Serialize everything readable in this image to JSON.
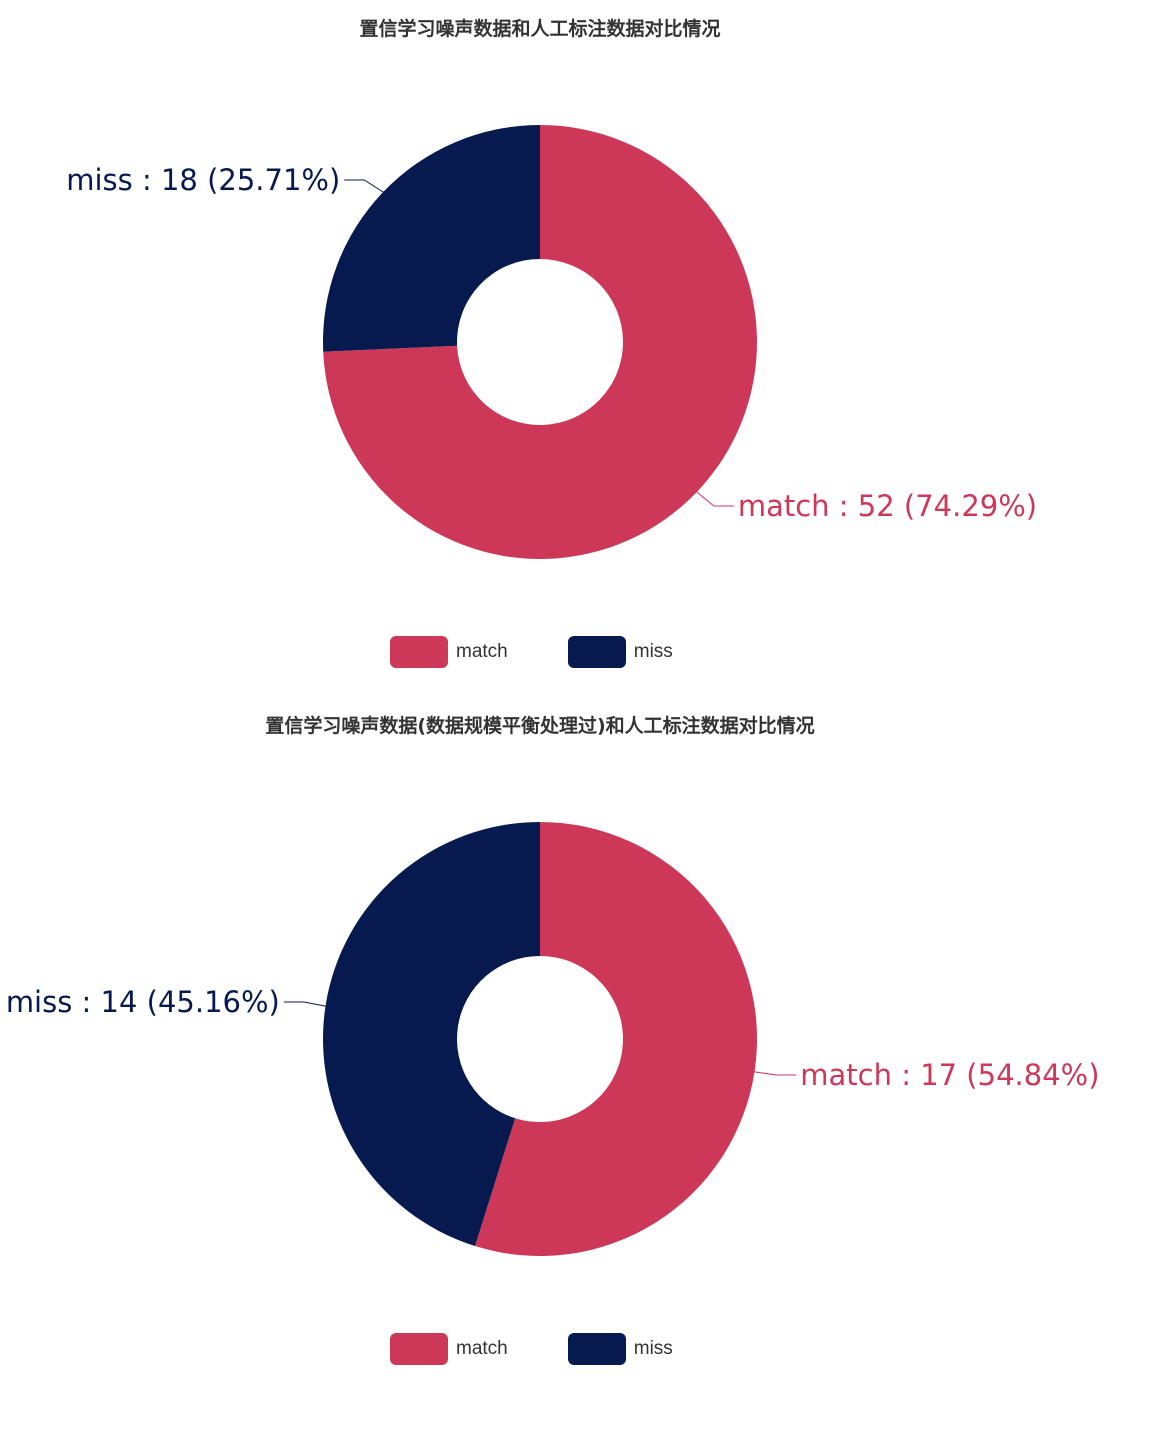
{
  "colors": {
    "match": "#cd3858",
    "miss": "#061a4f"
  },
  "chart_data": [
    {
      "type": "pie",
      "title": "置信学习噪声数据和人工标注数据对比情况",
      "donut": true,
      "legend_position": "bottom",
      "series": [
        {
          "name": "match",
          "value": 52,
          "percent": "74.29%",
          "label": "match : 52 (74.29%)"
        },
        {
          "name": "miss",
          "value": 18,
          "percent": "25.71%",
          "label": "miss : 18 (25.71%)"
        }
      ]
    },
    {
      "type": "pie",
      "title": "置信学习噪声数据(数据规模平衡处理过)和人工标注数据对比情况",
      "donut": true,
      "legend_position": "bottom",
      "series": [
        {
          "name": "match",
          "value": 17,
          "percent": "54.84%",
          "label": "match : 17 (54.84%)"
        },
        {
          "name": "miss",
          "value": 14,
          "percent": "45.16%",
          "label": "miss : 14 (45.16%)"
        }
      ]
    }
  ]
}
